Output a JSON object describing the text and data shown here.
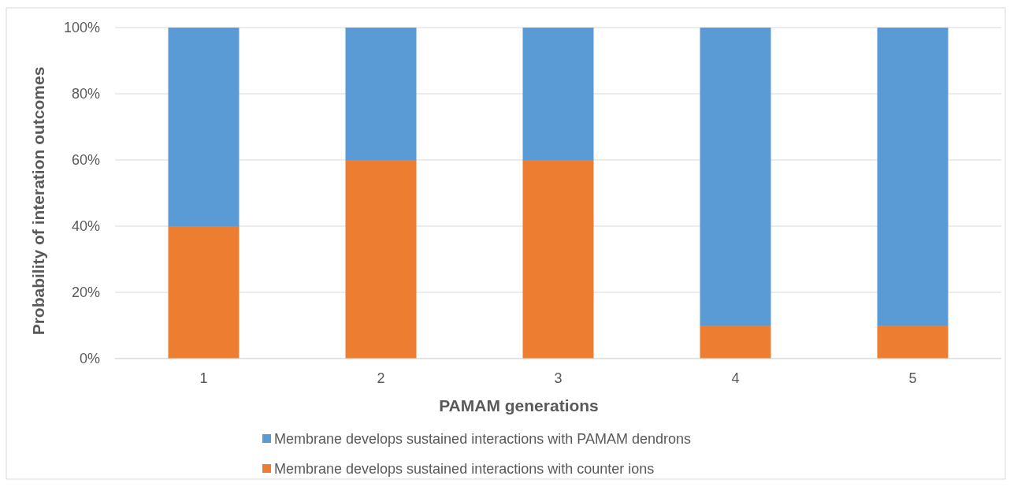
{
  "chart_data": {
    "type": "bar",
    "stacked": true,
    "xlabel": "PAMAM generations",
    "ylabel": "Probability of interation outcomes",
    "categories": [
      "1",
      "2",
      "3",
      "4",
      "5"
    ],
    "series": [
      {
        "name": "Membrane develops sustained interactions with counter ions",
        "color": "#ed7d31",
        "values": [
          40,
          60,
          60,
          10,
          10
        ]
      },
      {
        "name": "Membrane develops sustained interactions with PAMAM dendrons",
        "color": "#5b9bd5",
        "values": [
          60,
          40,
          40,
          90,
          90
        ]
      }
    ],
    "ylim": [
      0,
      100
    ],
    "yticks": [
      {
        "value": 0,
        "label": "0%"
      },
      {
        "value": 20,
        "label": "20%"
      },
      {
        "value": 40,
        "label": "40%"
      },
      {
        "value": 60,
        "label": "60%"
      },
      {
        "value": 80,
        "label": "80%"
      },
      {
        "value": 100,
        "label": "100%"
      }
    ],
    "grid": "y",
    "legend": "bottom"
  }
}
